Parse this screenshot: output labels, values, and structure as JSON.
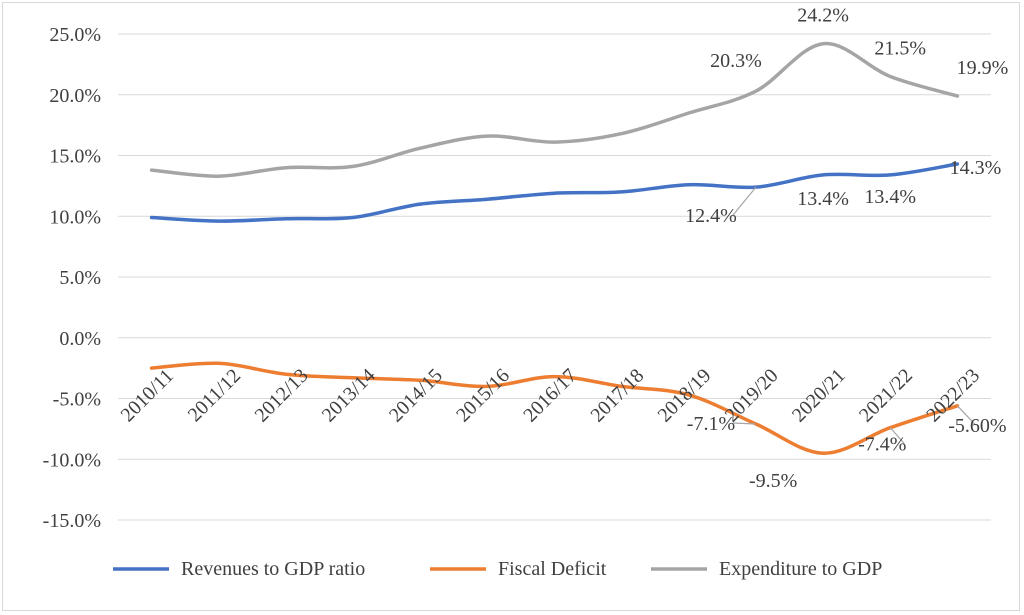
{
  "chart_data": {
    "type": "line",
    "title": "",
    "xlabel": "",
    "ylabel": "",
    "ylim": [
      -15,
      25
    ],
    "y_tick_step": 5,
    "y_tick_labels": [
      "25.0%",
      "20.0%",
      "15.0%",
      "10.0%",
      "5.0%",
      "0.0%",
      "-5.0%",
      "-10.0%",
      "-15.0%"
    ],
    "grid": "horizontal",
    "legend_position": "bottom",
    "categories": [
      "2010/11",
      "2011/12",
      "2012/13",
      "2013/14",
      "2014/15",
      "2015/16",
      "2016/17",
      "2017/18",
      "2018/19",
      "2019/20",
      "2020/21",
      "2021/22",
      "2022/23"
    ],
    "series": [
      {
        "name": "Revenues to GDP ratio",
        "color": "#4472c4",
        "values": [
          9.9,
          9.6,
          9.8,
          9.9,
          11.0,
          11.4,
          11.9,
          12.0,
          12.6,
          12.4,
          13.4,
          13.4,
          14.3
        ],
        "labels": [
          "",
          "",
          "",
          "",
          "",
          "",
          "",
          "",
          "",
          "12.4%",
          "13.4%",
          "13.4%",
          "14.3%"
        ]
      },
      {
        "name": "Fiscal Deficit",
        "color": "#ed7d31",
        "values": [
          -2.5,
          -2.1,
          -3.0,
          -3.3,
          -3.5,
          -4.0,
          -3.2,
          -4.0,
          -4.7,
          -7.1,
          -9.5,
          -7.4,
          -5.6
        ],
        "labels": [
          "",
          "",
          "",
          "",
          "",
          "",
          "",
          "",
          "",
          "-7.1%",
          "-9.5%",
          "-7.4%",
          "-5.60%"
        ]
      },
      {
        "name": "Expenditure to GDP",
        "color": "#a5a5a5",
        "values": [
          13.8,
          13.3,
          14.0,
          14.1,
          15.6,
          16.6,
          16.1,
          16.8,
          18.5,
          20.3,
          24.2,
          21.5,
          19.9
        ],
        "labels": [
          "",
          "",
          "",
          "",
          "",
          "",
          "",
          "",
          "",
          "20.3%",
          "24.2%",
          "21.5%",
          "19.9%"
        ]
      }
    ]
  }
}
